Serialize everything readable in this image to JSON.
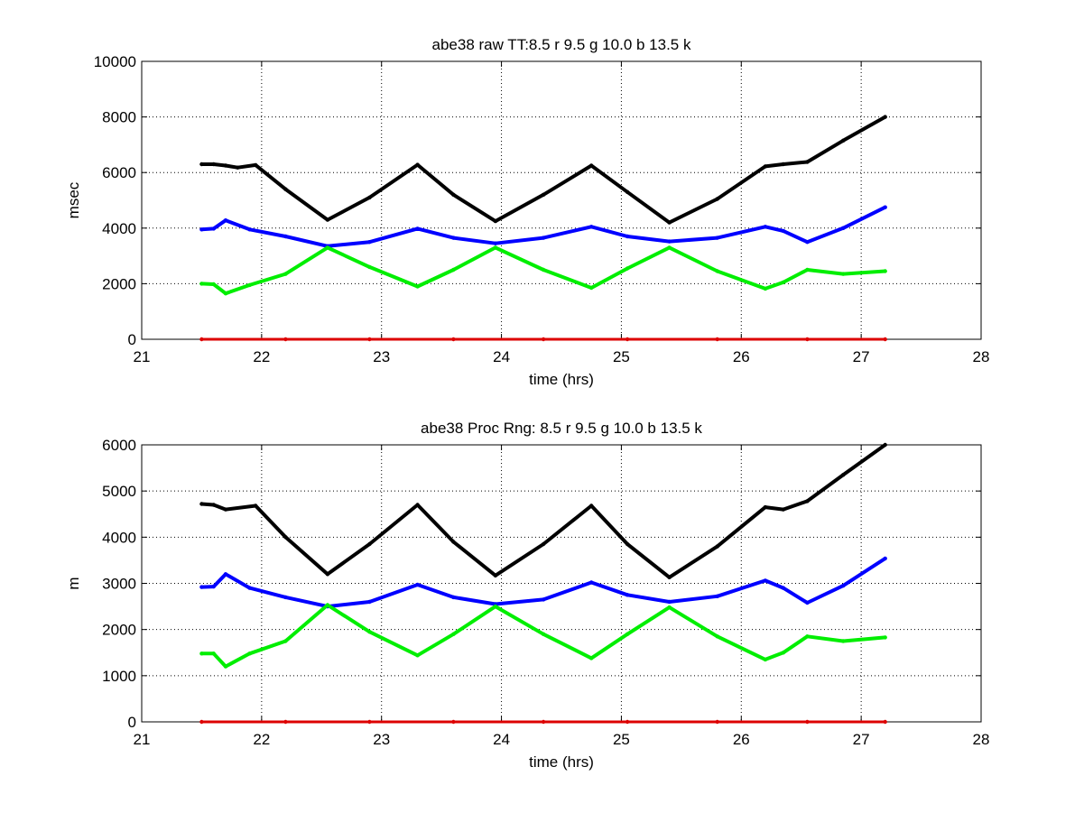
{
  "colors": {
    "black": "#000000",
    "blue": "#0000ff",
    "green": "#00ee00",
    "red": "#dd0000"
  },
  "chart_data": [
    {
      "type": "scatter",
      "title": "abe38 raw TT:8.5 r  9.5 g  10.0 b  13.5  k",
      "xlabel": "time (hrs)",
      "ylabel": "msec",
      "xlim": [
        21,
        28
      ],
      "ylim": [
        0,
        10000
      ],
      "xticks": [
        21,
        22,
        23,
        24,
        25,
        26,
        27,
        28
      ],
      "yticks": [
        0,
        2000,
        4000,
        6000,
        8000,
        10000
      ],
      "grid": true,
      "series": [
        {
          "color": "#000000",
          "points": [
            [
              21.5,
              6300
            ],
            [
              21.6,
              6300
            ],
            [
              21.7,
              6250
            ],
            [
              21.8,
              6180
            ],
            [
              21.95,
              6270
            ],
            [
              22.2,
              5400
            ],
            [
              22.55,
              4300
            ],
            [
              22.9,
              5100
            ],
            [
              23.3,
              6280
            ],
            [
              23.6,
              5200
            ],
            [
              23.95,
              4250
            ],
            [
              24.35,
              5200
            ],
            [
              24.75,
              6250
            ],
            [
              25.05,
              5300
            ],
            [
              25.4,
              4200
            ],
            [
              25.8,
              5050
            ],
            [
              26.2,
              6220
            ],
            [
              26.35,
              6300
            ],
            [
              26.55,
              6380
            ],
            [
              26.85,
              7150
            ],
            [
              27.2,
              8000
            ]
          ]
        },
        {
          "color": "#0000ff",
          "points": [
            [
              21.5,
              3950
            ],
            [
              21.6,
              3980
            ],
            [
              21.7,
              4280
            ],
            [
              21.9,
              3950
            ],
            [
              22.2,
              3700
            ],
            [
              22.55,
              3350
            ],
            [
              22.9,
              3500
            ],
            [
              23.3,
              3980
            ],
            [
              23.6,
              3650
            ],
            [
              23.95,
              3450
            ],
            [
              24.35,
              3650
            ],
            [
              24.75,
              4050
            ],
            [
              25.05,
              3700
            ],
            [
              25.4,
              3520
            ],
            [
              25.8,
              3650
            ],
            [
              26.2,
              4050
            ],
            [
              26.35,
              3900
            ],
            [
              26.55,
              3500
            ],
            [
              26.85,
              4000
            ],
            [
              27.2,
              4750
            ]
          ]
        },
        {
          "color": "#00ee00",
          "points": [
            [
              21.5,
              2000
            ],
            [
              21.6,
              1980
            ],
            [
              21.7,
              1650
            ],
            [
              21.9,
              1950
            ],
            [
              22.2,
              2350
            ],
            [
              22.55,
              3300
            ],
            [
              22.9,
              2600
            ],
            [
              23.3,
              1900
            ],
            [
              23.6,
              2500
            ],
            [
              23.95,
              3300
            ],
            [
              24.35,
              2500
            ],
            [
              24.75,
              1850
            ],
            [
              25.05,
              2550
            ],
            [
              25.4,
              3300
            ],
            [
              25.8,
              2450
            ],
            [
              26.2,
              1820
            ],
            [
              26.35,
              2050
            ],
            [
              26.55,
              2500
            ],
            [
              26.85,
              2350
            ],
            [
              27.2,
              2450
            ]
          ]
        },
        {
          "color": "#dd0000",
          "points": [
            [
              21.5,
              0
            ],
            [
              22.2,
              0
            ],
            [
              22.9,
              0
            ],
            [
              23.6,
              0
            ],
            [
              24.35,
              0
            ],
            [
              25.05,
              0
            ],
            [
              25.8,
              0
            ],
            [
              26.55,
              0
            ],
            [
              27.2,
              0
            ]
          ]
        }
      ]
    },
    {
      "type": "scatter",
      "title": "abe38 Proc Rng: 8.5 r  9.5 g  10.0 b  13.5  k",
      "xlabel": "time (hrs)",
      "ylabel": "m",
      "xlim": [
        21,
        28
      ],
      "ylim": [
        0,
        6000
      ],
      "xticks": [
        21,
        22,
        23,
        24,
        25,
        26,
        27,
        28
      ],
      "yticks": [
        0,
        1000,
        2000,
        3000,
        4000,
        5000,
        6000
      ],
      "grid": true,
      "series": [
        {
          "color": "#000000",
          "points": [
            [
              21.5,
              4720
            ],
            [
              21.6,
              4700
            ],
            [
              21.7,
              4600
            ],
            [
              21.95,
              4680
            ],
            [
              22.2,
              4000
            ],
            [
              22.55,
              3200
            ],
            [
              22.9,
              3850
            ],
            [
              23.3,
              4700
            ],
            [
              23.6,
              3900
            ],
            [
              23.95,
              3170
            ],
            [
              24.35,
              3850
            ],
            [
              24.75,
              4680
            ],
            [
              25.05,
              3850
            ],
            [
              25.4,
              3130
            ],
            [
              25.8,
              3800
            ],
            [
              26.2,
              4650
            ],
            [
              26.35,
              4600
            ],
            [
              26.55,
              4780
            ],
            [
              26.85,
              5350
            ],
            [
              27.2,
              6000
            ]
          ]
        },
        {
          "color": "#0000ff",
          "points": [
            [
              21.5,
              2920
            ],
            [
              21.6,
              2930
            ],
            [
              21.7,
              3200
            ],
            [
              21.9,
              2900
            ],
            [
              22.2,
              2700
            ],
            [
              22.55,
              2500
            ],
            [
              22.9,
              2600
            ],
            [
              23.3,
              2970
            ],
            [
              23.6,
              2700
            ],
            [
              23.95,
              2550
            ],
            [
              24.35,
              2650
            ],
            [
              24.75,
              3020
            ],
            [
              25.05,
              2750
            ],
            [
              25.4,
              2600
            ],
            [
              25.8,
              2720
            ],
            [
              26.2,
              3060
            ],
            [
              26.35,
              2900
            ],
            [
              26.55,
              2580
            ],
            [
              26.85,
              2950
            ],
            [
              27.2,
              3540
            ]
          ]
        },
        {
          "color": "#00ee00",
          "points": [
            [
              21.5,
              1480
            ],
            [
              21.6,
              1480
            ],
            [
              21.7,
              1200
            ],
            [
              21.9,
              1480
            ],
            [
              22.2,
              1750
            ],
            [
              22.55,
              2530
            ],
            [
              22.9,
              1950
            ],
            [
              23.3,
              1440
            ],
            [
              23.6,
              1900
            ],
            [
              23.95,
              2500
            ],
            [
              24.35,
              1900
            ],
            [
              24.75,
              1380
            ],
            [
              25.05,
              1900
            ],
            [
              25.4,
              2480
            ],
            [
              25.8,
              1850
            ],
            [
              26.2,
              1350
            ],
            [
              26.35,
              1500
            ],
            [
              26.55,
              1850
            ],
            [
              26.85,
              1750
            ],
            [
              27.2,
              1830
            ]
          ]
        },
        {
          "color": "#dd0000",
          "points": [
            [
              21.5,
              0
            ],
            [
              22.2,
              0
            ],
            [
              22.9,
              0
            ],
            [
              23.6,
              0
            ],
            [
              24.35,
              0
            ],
            [
              25.05,
              0
            ],
            [
              25.8,
              0
            ],
            [
              26.55,
              0
            ],
            [
              27.2,
              0
            ]
          ]
        }
      ]
    }
  ]
}
